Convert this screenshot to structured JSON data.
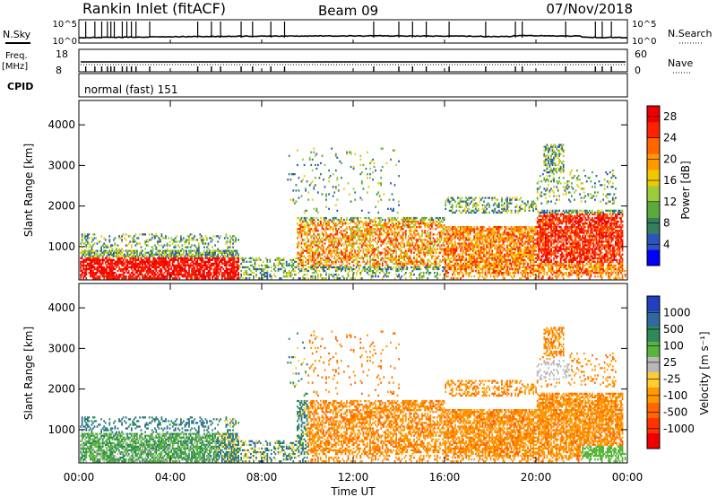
{
  "header": {
    "title": "Rankin Inlet (fitACF)",
    "beam": "Beam 09",
    "date": "07/Nov/2018"
  },
  "top_panels": {
    "nsky_label": "N.Sky",
    "nsearch_label": "N.Search",
    "nsky_ticks": [
      "10^5",
      "10^0"
    ],
    "freq_label": "Freq.",
    "freq_unit": "[MHz]",
    "freq_ticks": [
      "18",
      "8"
    ],
    "nave_label": "Nave",
    "nave_ticks": [
      "60",
      "0"
    ],
    "cpid_label": "CPID",
    "cpid_value": "normal (fast) 151"
  },
  "chart_data": [
    {
      "type": "heatmap",
      "name": "power",
      "ylabel": "Slant Range [km]",
      "xlabel": "",
      "xlim": [
        0,
        24
      ],
      "ylim": [
        180,
        4600
      ],
      "x_ticks": [
        "00:00",
        "04:00",
        "08:00",
        "12:00",
        "16:00",
        "20:00",
        "00:00"
      ],
      "y_ticks": [
        1000,
        2000,
        3000,
        4000
      ],
      "colorbar": {
        "label": "Power [dB]",
        "ticks": [
          "4",
          "8",
          "12",
          "16",
          "20",
          "24",
          "28"
        ],
        "range": [
          0,
          30
        ],
        "colors": [
          "#0000ff",
          "#2d55b9",
          "#347f5e",
          "#5aaa3c",
          "#9ccc3c",
          "#f0c800",
          "#ff9900",
          "#ff6600",
          "#ff2200",
          "#ee0000"
        ]
      },
      "description_regions": [
        {
          "t_start": 0.1,
          "t_end": 6.5,
          "range_start": 250,
          "range_end": 800,
          "value": "25-30"
        },
        {
          "t_start": 8.0,
          "t_end": 16.0,
          "range_start": 500,
          "range_end": 1600,
          "value": "16-28"
        },
        {
          "t_start": 16.0,
          "t_end": 23.8,
          "range_start": 400,
          "range_end": 1800,
          "value": "20-30"
        }
      ]
    },
    {
      "type": "heatmap",
      "name": "velocity",
      "ylabel": "Slant Range [km]",
      "xlabel": "Time UT",
      "xlim": [
        0,
        24
      ],
      "ylim": [
        180,
        4600
      ],
      "x_ticks": [
        "00:00",
        "04:00",
        "08:00",
        "12:00",
        "16:00",
        "20:00",
        "00:00"
      ],
      "y_ticks": [
        1000,
        2000,
        3000,
        4000
      ],
      "colorbar": {
        "label": "Velocity [m s⁻¹]",
        "ticks": [
          "1000",
          "500",
          "100",
          "25",
          "-25",
          "-100",
          "-500",
          "-1000"
        ],
        "colors": [
          "#2040c0",
          "#2e6aa0",
          "#2e8a5a",
          "#58b43c",
          "#b8b8b8",
          "#ffcc33",
          "#ff9900",
          "#ff6600",
          "#ff3300",
          "#ee0000"
        ]
      }
    }
  ]
}
